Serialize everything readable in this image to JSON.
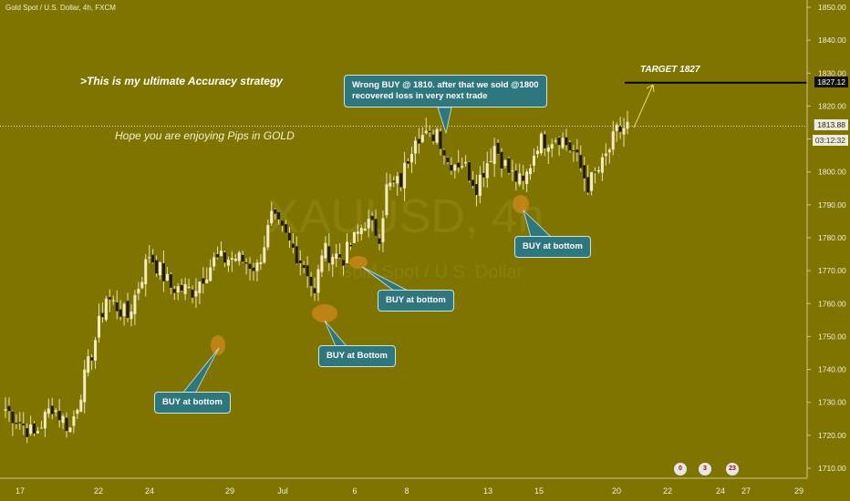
{
  "header": {
    "title": "Gold Spot / U.S. Dollar, 4h, FXCM"
  },
  "watermark": {
    "symbol": "XAUUSD, 4h",
    "name": "Gold Spot / U.S. Dollar"
  },
  "notes": {
    "strategy": ">This is my ultimate Accuracy strategy",
    "pips": "Hope you are enjoying Pips in GOLD",
    "target": "TARGET 1827"
  },
  "callouts": {
    "wrong_buy_line1": "Wrong BUY @ 1810. after that we sold @1800",
    "wrong_buy_line2": "recovered loss in very next trade",
    "buy_bottom_1": "BUY at bottom",
    "buy_bottom_2": "BUY at Bottom",
    "buy_bottom_3": "BUY at bottom",
    "buy_bottom_4": "BUY at bottom"
  },
  "price_badges": {
    "target_level": "1827.12",
    "last_price": "1813.88",
    "countdown": "03:12:32"
  },
  "event_badges": [
    "0",
    "3",
    "23"
  ],
  "colors": {
    "background": "#7f7400",
    "bull_body": "#f4ecc0",
    "bear_body": "#1e1a00",
    "wick": "#e8e0b0",
    "callout_bg": "#2f777e",
    "highlight": "#d18a1c",
    "target_line": "#000000",
    "arrow": "#f0e060"
  },
  "chart_data": {
    "type": "candlestick",
    "symbol": "XAUUSD",
    "timeframe": "4h",
    "y_ticks": [
      1710,
      1720,
      1730,
      1740,
      1750,
      1760,
      1770,
      1780,
      1790,
      1800,
      1810,
      1820,
      1830,
      1840,
      1850
    ],
    "ylim": [
      1706,
      1852
    ],
    "x_ticks": [
      "17",
      "22",
      "24",
      "29",
      "Jul",
      "6",
      "8",
      "13",
      "15",
      "20",
      "22",
      "24",
      "27",
      "29"
    ],
    "target_level": 1827.12,
    "last_price": 1813.88,
    "close_path": [
      {
        "bar": 0,
        "close": 1728
      },
      {
        "bar": 8,
        "close": 1720
      },
      {
        "bar": 13,
        "close": 1729
      },
      {
        "bar": 18,
        "close": 1722
      },
      {
        "bar": 24,
        "close": 1745
      },
      {
        "bar": 28,
        "close": 1762
      },
      {
        "bar": 34,
        "close": 1756
      },
      {
        "bar": 40,
        "close": 1775
      },
      {
        "bar": 46,
        "close": 1765
      },
      {
        "bar": 52,
        "close": 1764
      },
      {
        "bar": 58,
        "close": 1773
      },
      {
        "bar": 64,
        "close": 1774
      },
      {
        "bar": 70,
        "close": 1771
      },
      {
        "bar": 74,
        "close": 1786
      },
      {
        "bar": 78,
        "close": 1780
      },
      {
        "bar": 84,
        "close": 1770
      },
      {
        "bar": 86,
        "close": 1762
      },
      {
        "bar": 88,
        "close": 1776
      },
      {
        "bar": 94,
        "close": 1774
      },
      {
        "bar": 100,
        "close": 1785
      },
      {
        "bar": 104,
        "close": 1781
      },
      {
        "bar": 106,
        "close": 1795
      },
      {
        "bar": 110,
        "close": 1797
      },
      {
        "bar": 114,
        "close": 1812
      },
      {
        "bar": 118,
        "close": 1810
      },
      {
        "bar": 120,
        "close": 1813
      },
      {
        "bar": 123,
        "close": 1803
      },
      {
        "bar": 127,
        "close": 1803
      },
      {
        "bar": 131,
        "close": 1796
      },
      {
        "bar": 136,
        "close": 1808
      },
      {
        "bar": 140,
        "close": 1800
      },
      {
        "bar": 144,
        "close": 1796
      },
      {
        "bar": 148,
        "close": 1809
      },
      {
        "bar": 154,
        "close": 1811
      },
      {
        "bar": 158,
        "close": 1806
      },
      {
        "bar": 162,
        "close": 1796
      },
      {
        "bar": 166,
        "close": 1802
      },
      {
        "bar": 170,
        "close": 1812
      },
      {
        "bar": 173,
        "close": 1814
      }
    ],
    "annotations": [
      {
        "label": "TARGET 1827",
        "value": 1827
      },
      {
        "label": "Wrong BUY @ 1810",
        "value": 1810
      },
      {
        "label": "sold @1800",
        "value": 1800
      }
    ]
  }
}
